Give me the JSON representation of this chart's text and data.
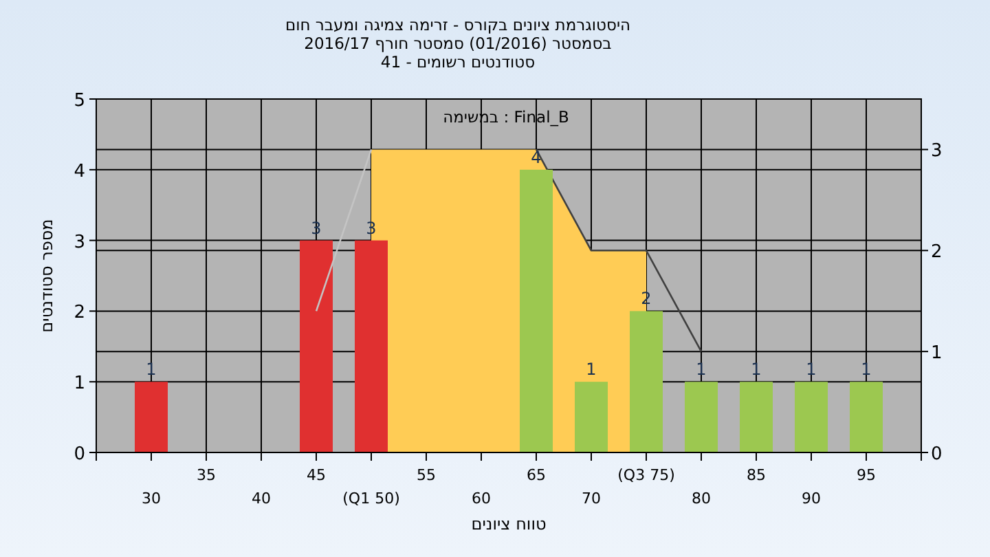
{
  "chart_data": {
    "type": "bar",
    "title": "היסטוגרמת ציונים בקורס - זרימה צמיגה ומעבר חום",
    "subtitle": "בסמסטר  (01/2016)  סמסטר חורף 2016/17\nסטודנטים רשומים - 41",
    "xlabel": "טווח ציונים",
    "ylabel": "מספר סטודנטים",
    "annotations": [
      "במשימה : Final_B"
    ],
    "categories": [
      "30",
      "35",
      "40",
      "45",
      "(Q1 50)",
      "55",
      "60",
      "65",
      "70",
      "(Q3 75)",
      "80",
      "85",
      "90",
      "95"
    ],
    "series": [
      {
        "type": "area",
        "axis": "y2",
        "color": "#ffcc55",
        "values": [
          null,
          null,
          null,
          null,
          3,
          3,
          3,
          3,
          2,
          2,
          null,
          null,
          null,
          null
        ]
      },
      {
        "type": "line",
        "axis": "y2",
        "color": "#404040",
        "values": [
          null,
          null,
          null,
          null,
          null,
          null,
          null,
          3,
          2,
          2,
          1,
          null,
          null,
          null
        ]
      },
      {
        "values": [
          1,
          0,
          0,
          3,
          3,
          0,
          0,
          4,
          1,
          2,
          1,
          1,
          1,
          1
        ],
        "colors": [
          "#e03030",
          "#e03030",
          "#e03030",
          "#e03030",
          "#e03030",
          "#9cc850",
          "#9cc850",
          "#9cc850",
          "#9cc850",
          "#9cc850",
          "#9cc850",
          "#9cc850",
          "#9cc850",
          "#9cc850"
        ],
        "value_labels": [
          "1",
          null,
          null,
          "3",
          "3",
          null,
          null,
          "4",
          "1",
          "2",
          "1",
          "1",
          "1",
          "1"
        ]
      },
      {
        "type": "line",
        "axis": "y2",
        "color": "#c4c4c4",
        "values": [
          null,
          null,
          null,
          1.4,
          3,
          null,
          null,
          null,
          null,
          null,
          null,
          null,
          null,
          null
        ]
      }
    ],
    "ylim": [
      0,
      5
    ],
    "yticks": [
      0,
      1,
      2,
      3,
      4,
      5
    ],
    "y2lim": [
      0,
      3.5
    ],
    "y2ticks": [
      0,
      1,
      2,
      3
    ],
    "grid": true
  }
}
